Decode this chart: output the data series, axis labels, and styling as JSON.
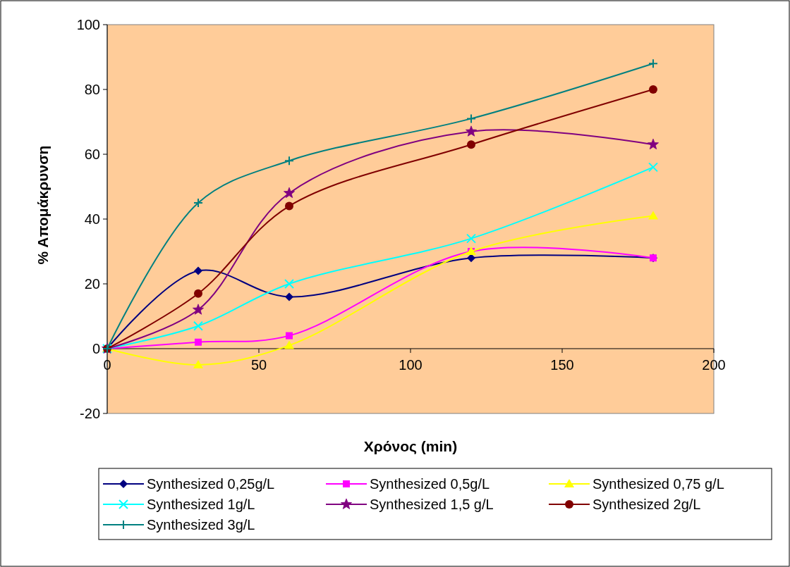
{
  "chart_data": {
    "type": "line",
    "xlabel": "Χρόνος (min)",
    "ylabel": "% Απομάκρυνση",
    "x": [
      0,
      30,
      60,
      120,
      180
    ],
    "xlim": [
      0,
      200
    ],
    "xticks": [
      0,
      50,
      100,
      150,
      200
    ],
    "ylim": [
      -20,
      100
    ],
    "yticks": [
      -20,
      0,
      20,
      40,
      60,
      80,
      100
    ],
    "grid": false,
    "legend": "bottom",
    "series": [
      {
        "name": "Synthesized 0,25g/L",
        "color": "#000080",
        "marker": "diamond",
        "values": [
          0,
          24,
          16,
          28,
          28
        ]
      },
      {
        "name": "Synthesized 0,5g/L",
        "color": "#ff00ff",
        "marker": "square",
        "values": [
          0,
          2,
          4,
          30,
          28
        ]
      },
      {
        "name": "Synthesized 0,75 g/L",
        "color": "#ffff00",
        "marker": "triangle",
        "values": [
          0,
          -5,
          1,
          30,
          41
        ]
      },
      {
        "name": "Synthesized 1g/L",
        "color": "#00ffff",
        "marker": "cross",
        "values": [
          0,
          7,
          20,
          34,
          56
        ]
      },
      {
        "name": "Synthesized 1,5 g/L",
        "color": "#800080",
        "marker": "star",
        "values": [
          0,
          12,
          48,
          67,
          63
        ]
      },
      {
        "name": "Synthesized 2g/L",
        "color": "#800000",
        "marker": "circle",
        "values": [
          0,
          17,
          44,
          63,
          80
        ]
      },
      {
        "name": "Synthesized 3g/L",
        "color": "#008080",
        "marker": "plus",
        "values": [
          0,
          45,
          58,
          71,
          88
        ]
      }
    ]
  }
}
